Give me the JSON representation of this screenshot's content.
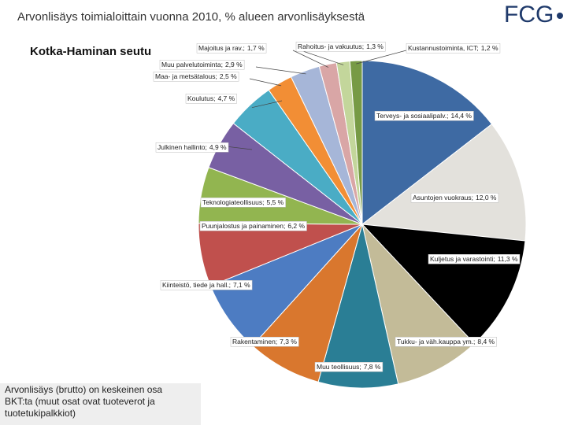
{
  "header": {
    "title": "Arvonlisäys toimialoittain vuonna 2010, % alueen arvonlisäyksestä",
    "logo": "FCG"
  },
  "note_lines": [
    "Arvonlisäys (brutto) on  keskeinen osa",
    "BKT:ta (muut osat ovat tuoteverot ja",
    "tuotetukipalkkiot)"
  ],
  "chart_data": {
    "type": "pie",
    "title": "Kotka-Haminan seutu",
    "categories": [
      "Terveys- ja sosiaalipalv.;",
      "Asuntojen vuokraus;",
      "Kuljetus ja varastointi;",
      "Tukku- ja väh.kauppa ym.;",
      "Muu teollisuus;",
      "Rakentaminen;",
      "Kiinteistö, tiede ja hall.;",
      "Puunjalostus ja painaminen;",
      "Teknologiateollisuus;",
      "Julkinen hallinto;",
      "Koulutus;",
      "Maa- ja metsätalous;",
      "Muu palvelutoiminta;",
      "Majoitus ja rav.;",
      "Rahoitus- ja vakuutus;",
      "Kustannustoiminta, ICT;"
    ],
    "values": [
      14.4,
      12.0,
      11.3,
      8.4,
      7.8,
      7.3,
      7.1,
      6.2,
      5.5,
      4.9,
      4.7,
      2.5,
      2.9,
      1.7,
      1.3,
      1.2
    ],
    "value_labels": [
      "14,4 %",
      "12,0 %",
      "11,3 %",
      "8,4 %",
      "7,8 %",
      "7,3 %",
      "7,1 %",
      "6,2 %",
      "5,5 %",
      "4,9 %",
      "4,7 %",
      "2,5 %",
      "2,9 %",
      "1,7 %",
      "1,3 %",
      "1,2 %"
    ],
    "colors": [
      "#3e6aa3",
      "#e3e1dc",
      "#000000",
      "#c3bb98",
      "#2a7e95",
      "#d9772e",
      "#4d7cc2",
      "#c0504d",
      "#92b550",
      "#7860a3",
      "#4aacc5",
      "#f28e35",
      "#a6b6d8",
      "#d9a6a6",
      "#c3d69b",
      "#779a45"
    ]
  }
}
